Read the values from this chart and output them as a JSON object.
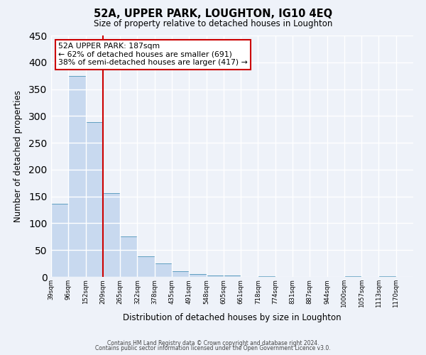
{
  "title": "52A, UPPER PARK, LOUGHTON, IG10 4EQ",
  "subtitle": "Size of property relative to detached houses in Loughton",
  "xlabel": "Distribution of detached houses by size in Loughton",
  "ylabel": "Number of detached properties",
  "bar_color": "#c8d9ef",
  "bar_edge_color": "#5f9ec0",
  "background_color": "#eef2f9",
  "grid_color": "#ffffff",
  "annotation_border_color": "#cc0000",
  "vline_color": "#cc0000",
  "bin_edges": [
    39,
    96,
    152,
    209,
    265,
    322,
    378,
    435,
    491,
    548,
    605,
    661,
    718,
    774,
    831,
    887,
    944,
    1000,
    1057,
    1113,
    1170
  ],
  "bin_labels": [
    "39sqm",
    "96sqm",
    "152sqm",
    "209sqm",
    "265sqm",
    "322sqm",
    "378sqm",
    "435sqm",
    "491sqm",
    "548sqm",
    "605sqm",
    "661sqm",
    "718sqm",
    "774sqm",
    "831sqm",
    "887sqm",
    "944sqm",
    "1000sqm",
    "1057sqm",
    "1113sqm",
    "1170sqm"
  ],
  "counts": [
    136,
    374,
    288,
    156,
    75,
    38,
    25,
    10,
    5,
    2,
    2,
    0,
    1,
    0,
    0,
    0,
    0,
    1,
    0,
    1,
    0
  ],
  "ylim": [
    0,
    450
  ],
  "yticks": [
    0,
    50,
    100,
    150,
    200,
    250,
    300,
    350,
    400,
    450
  ],
  "vline_x": 209,
  "annotation_line1": "52A UPPER PARK: 187sqm",
  "annotation_line2": "← 62% of detached houses are smaller (691)",
  "annotation_line3": "38% of semi-detached houses are larger (417) →",
  "footnote1": "Contains HM Land Registry data © Crown copyright and database right 2024.",
  "footnote2": "Contains public sector information licensed under the Open Government Licence v3.0."
}
